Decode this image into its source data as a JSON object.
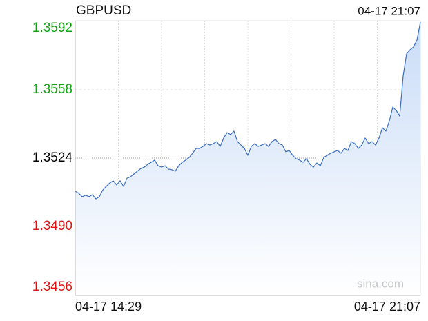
{
  "chart_data": {
    "type": "line",
    "title": "GBPUSD",
    "timestamp": "04-17 21:07",
    "watermark": "sina.com",
    "color": "#3a6ec2",
    "fill_color": "#c9dcf7",
    "grid": true,
    "ylim": [
      1.3456,
      1.3592
    ],
    "yticks": [
      1.3592,
      1.3558,
      1.3524,
      {
        "value": 1.349,
        "label": "1.3490"
      },
      1.3456
    ],
    "ytick_colors": [
      "#14a014",
      "#14a014",
      "#000000",
      "#e01414",
      "#e01414"
    ],
    "categories": [
      "04-17 14:29",
      null,
      null,
      null,
      null,
      null,
      null,
      null,
      null,
      null,
      null,
      null,
      null,
      null,
      null,
      null,
      null,
      null,
      null,
      null,
      null,
      null,
      null,
      null,
      null,
      null,
      null,
      null,
      null,
      null,
      null,
      null,
      null,
      null,
      null,
      null,
      null,
      null,
      null,
      null,
      null,
      null,
      null,
      null,
      null,
      null,
      null,
      null,
      null,
      null,
      null,
      null,
      null,
      null,
      null,
      null,
      null,
      null,
      null,
      null,
      null,
      null,
      null,
      null,
      null,
      null,
      null,
      null,
      null,
      null,
      null,
      null,
      null,
      null,
      null,
      null,
      null,
      null,
      null,
      null,
      null,
      null,
      null,
      null,
      null,
      null,
      null,
      null,
      null,
      null,
      null,
      null,
      null,
      null,
      null,
      null,
      null,
      null,
      null,
      null,
      "04-17 21:07"
    ],
    "values": [
      1.35075,
      1.35065,
      1.35048,
      1.35055,
      1.35048,
      1.35058,
      1.35037,
      1.35048,
      1.35082,
      1.35099,
      1.35116,
      1.35127,
      1.35106,
      1.35127,
      1.35099,
      1.3514,
      1.35147,
      1.35161,
      1.35175,
      1.35188,
      1.35195,
      1.35209,
      1.35219,
      1.3523,
      1.35202,
      1.35195,
      1.35202,
      1.35185,
      1.35182,
      1.35175,
      1.35202,
      1.35219,
      1.3523,
      1.35243,
      1.35264,
      1.35288,
      1.35288,
      1.35298,
      1.35312,
      1.35305,
      1.35312,
      1.35322,
      1.35298,
      1.3534,
      1.35367,
      1.35357,
      1.35374,
      1.35322,
      1.35305,
      1.35288,
      1.35254,
      1.35298,
      1.35312,
      1.35298,
      1.35305,
      1.35312,
      1.35298,
      1.35322,
      1.35333,
      1.35312,
      1.35305,
      1.35271,
      1.35278,
      1.35254,
      1.35237,
      1.3523,
      1.35219,
      1.35237,
      1.35209,
      1.35195,
      1.35216,
      1.35202,
      1.35243,
      1.35254,
      1.35264,
      1.35271,
      1.35278,
      1.35264,
      1.35288,
      1.35278,
      1.35322,
      1.35312,
      1.35288,
      1.35305,
      1.3534,
      1.35312,
      1.35322,
      1.35305,
      1.3534,
      1.35391,
      1.35374,
      1.35425,
      1.35494,
      1.35477,
      1.35449,
      1.35649,
      1.35759,
      1.35779,
      1.35793,
      1.35827,
      1.35917
    ]
  }
}
